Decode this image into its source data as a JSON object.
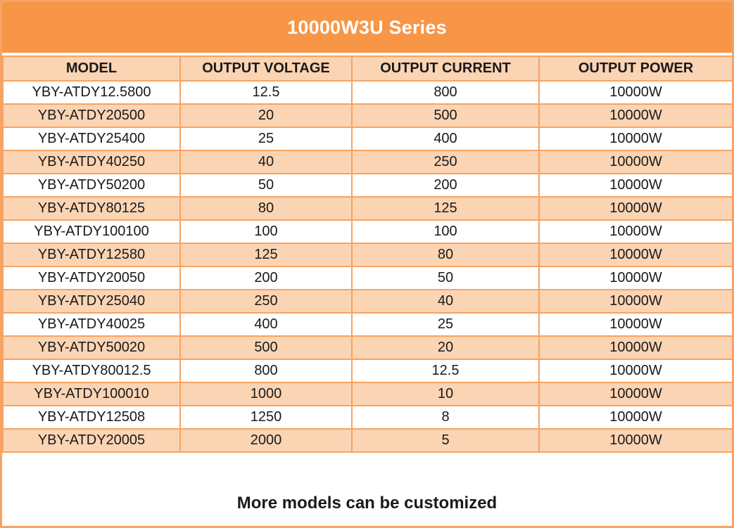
{
  "title": "10000W3U Series",
  "columns": [
    "MODEL",
    "OUTPUT VOLTAGE",
    "OUTPUT CURRENT",
    "OUTPUT POWER"
  ],
  "rows": [
    [
      "YBY-ATDY12.5800",
      "12.5",
      "800",
      "10000W"
    ],
    [
      "YBY-ATDY20500",
      "20",
      "500",
      "10000W"
    ],
    [
      "YBY-ATDY25400",
      "25",
      "400",
      "10000W"
    ],
    [
      "YBY-ATDY40250",
      "40",
      "250",
      "10000W"
    ],
    [
      "YBY-ATDY50200",
      "50",
      "200",
      "10000W"
    ],
    [
      "YBY-ATDY80125",
      "80",
      "125",
      "10000W"
    ],
    [
      "YBY-ATDY100100",
      "100",
      "100",
      "10000W"
    ],
    [
      "YBY-ATDY12580",
      "125",
      "80",
      "10000W"
    ],
    [
      "YBY-ATDY20050",
      "200",
      "50",
      "10000W"
    ],
    [
      "YBY-ATDY25040",
      "250",
      "40",
      "10000W"
    ],
    [
      "YBY-ATDY40025",
      "400",
      "25",
      "10000W"
    ],
    [
      "YBY-ATDY50020",
      "500",
      "20",
      "10000W"
    ],
    [
      "YBY-ATDY80012.5",
      "800",
      "12.5",
      "10000W"
    ],
    [
      "YBY-ATDY100010",
      "1000",
      "10",
      "10000W"
    ],
    [
      "YBY-ATDY12508",
      "1250",
      "8",
      "10000W"
    ],
    [
      "YBY-ATDY20005",
      "2000",
      "5",
      "10000W"
    ]
  ],
  "footer": "More models can be customized",
  "colors": {
    "accent": "#f79646",
    "border": "#f7a363",
    "row_shade": "#fbd4b4",
    "text": "#1a1a1a"
  }
}
